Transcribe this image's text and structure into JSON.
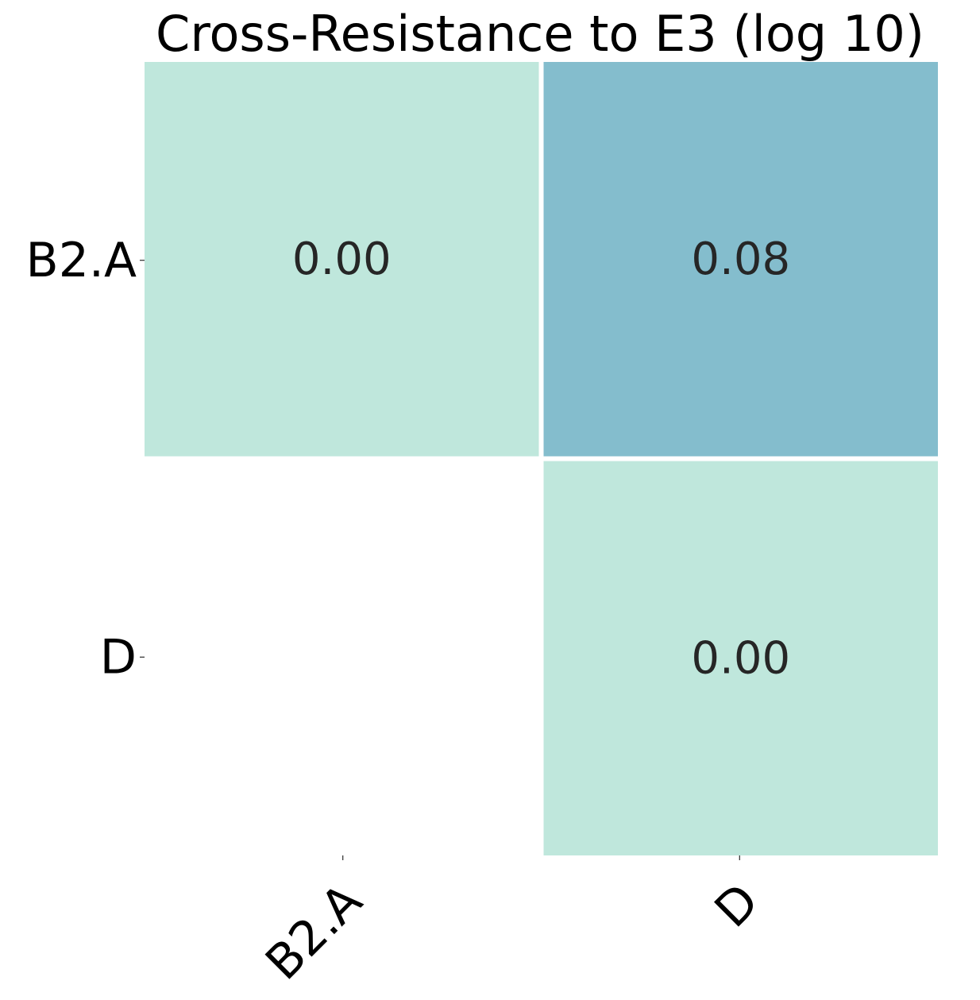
{
  "chart_data": {
    "type": "heatmap",
    "title": "Cross-Resistance to E3 (log 10)",
    "xlabel": "",
    "ylabel": "",
    "x_categories": [
      "B2.A",
      "D"
    ],
    "y_categories": [
      "B2.A",
      "D"
    ],
    "values": [
      [
        0.0,
        0.08
      ],
      [
        null,
        0.0
      ]
    ],
    "value_labels": [
      [
        "0.00",
        "0.08"
      ],
      [
        null,
        "0.00"
      ]
    ],
    "color_range": [
      0.0,
      0.08
    ],
    "color_low": "#bfe7dc",
    "color_high": "#84bdcd",
    "masked_cells": "lower-triangle",
    "grid": false,
    "legend": "none"
  }
}
